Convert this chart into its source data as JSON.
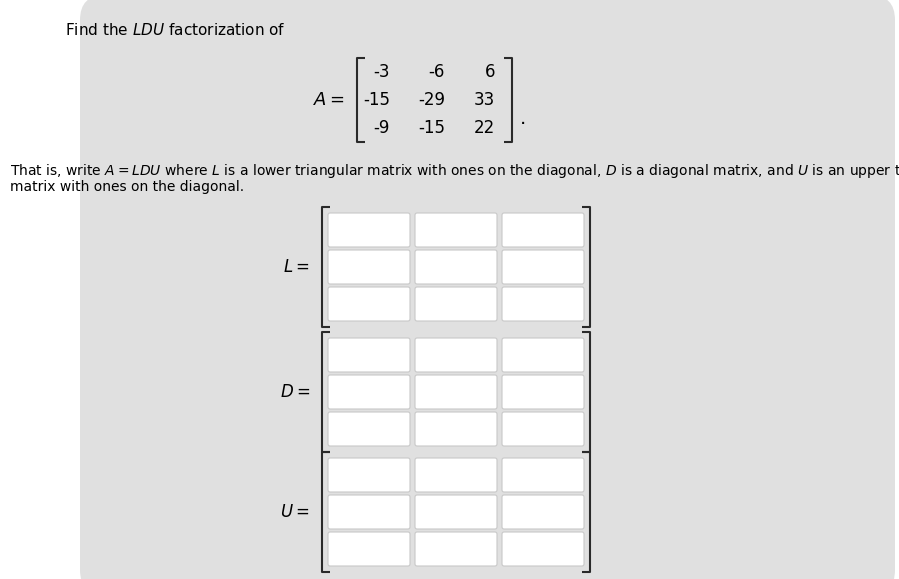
{
  "title": "Find the $LDU$ factorization of",
  "blob_color": "#e0e0e0",
  "page_background": "#ffffff",
  "matrix_A_rows": [
    [
      "-3",
      "-6",
      "6"
    ],
    [
      "-15",
      "-29",
      "33"
    ],
    [
      "-9",
      "-15",
      "22"
    ]
  ],
  "desc_line1": "That is, write $A = LDU$ where $L$ is a lower triangular matrix with ones on the diagonal, $D$ is a diagonal matrix, and $U$ is an upper triangular",
  "desc_line2": "matrix with ones on the diagonal.",
  "label_L": "$L=$",
  "label_D": "$D=$",
  "label_U": "$U=$",
  "A_label": "$A=$",
  "period": ".",
  "box_fill": "#ffffff",
  "box_edge": "#c8c8c8",
  "bracket_color": "#2a2a2a",
  "text_color": "#000000",
  "font_size_title": 11,
  "font_size_desc": 10,
  "font_size_matrix_A": 12,
  "font_size_label": 12
}
